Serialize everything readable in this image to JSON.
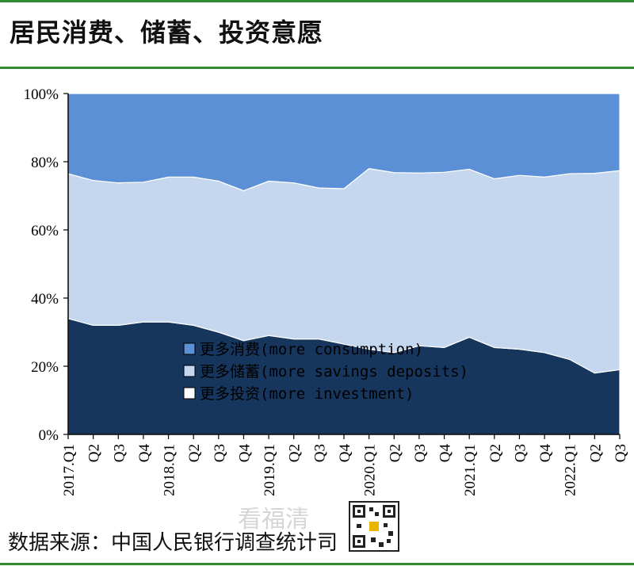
{
  "header": {
    "title": "居民消费、储蓄、投资意愿"
  },
  "footer": {
    "source": "数据来源：中国人民银行调查统计司",
    "watermark": "看福清"
  },
  "colors": {
    "accent_line": "#2e8b2e",
    "consumption": "#5b8fd6",
    "savings": "#c5d7ef",
    "investment": "#17365d"
  },
  "chart_data": {
    "type": "area",
    "stacked": true,
    "percent": true,
    "categories": [
      "2017.Q1",
      "Q2",
      "Q3",
      "Q4",
      "2018.Q1",
      "Q2",
      "Q3",
      "Q4",
      "2019.Q1",
      "Q2",
      "Q3",
      "Q4",
      "2020.Q1",
      "Q2",
      "Q3",
      "Q4",
      "2021.Q1",
      "Q2",
      "Q3",
      "Q4",
      "2022.Q1",
      "Q2",
      "Q3"
    ],
    "ylim": [
      0,
      100
    ],
    "yticks": [
      "0%",
      "20%",
      "40%",
      "60%",
      "80%",
      "100%"
    ],
    "series": [
      {
        "name": "更多投资(more investment)",
        "values": [
          34,
          32,
          32,
          33,
          33,
          32,
          30,
          27.5,
          29,
          28,
          28,
          26.5,
          25,
          24,
          26,
          25.5,
          28.5,
          25.5,
          25,
          24,
          22,
          18,
          19
        ]
      },
      {
        "name": "更多储蓄(more savings deposits)",
        "values": [
          42.5,
          42.5,
          41.8,
          41,
          42.5,
          43.5,
          44.3,
          44,
          45.3,
          45.8,
          44.3,
          45.6,
          53,
          52.8,
          50.7,
          51.4,
          49.3,
          49.5,
          51,
          51.5,
          54.5,
          58.6,
          58.4
        ]
      },
      {
        "name": "更多消费(more consumption)",
        "values": [
          23.5,
          25.5,
          26.2,
          26,
          24.5,
          24.5,
          25.7,
          28.5,
          25.7,
          26.2,
          27.7,
          27.9,
          22,
          23.2,
          23.3,
          23.1,
          22.2,
          25,
          24,
          24.5,
          23.5,
          23.4,
          22.6
        ]
      }
    ],
    "legend": {
      "placement": "bottom-center",
      "entries": [
        "更多消费(more consumption)",
        "更多储蓄(more savings deposits)",
        "更多投资(more investment)"
      ]
    }
  }
}
